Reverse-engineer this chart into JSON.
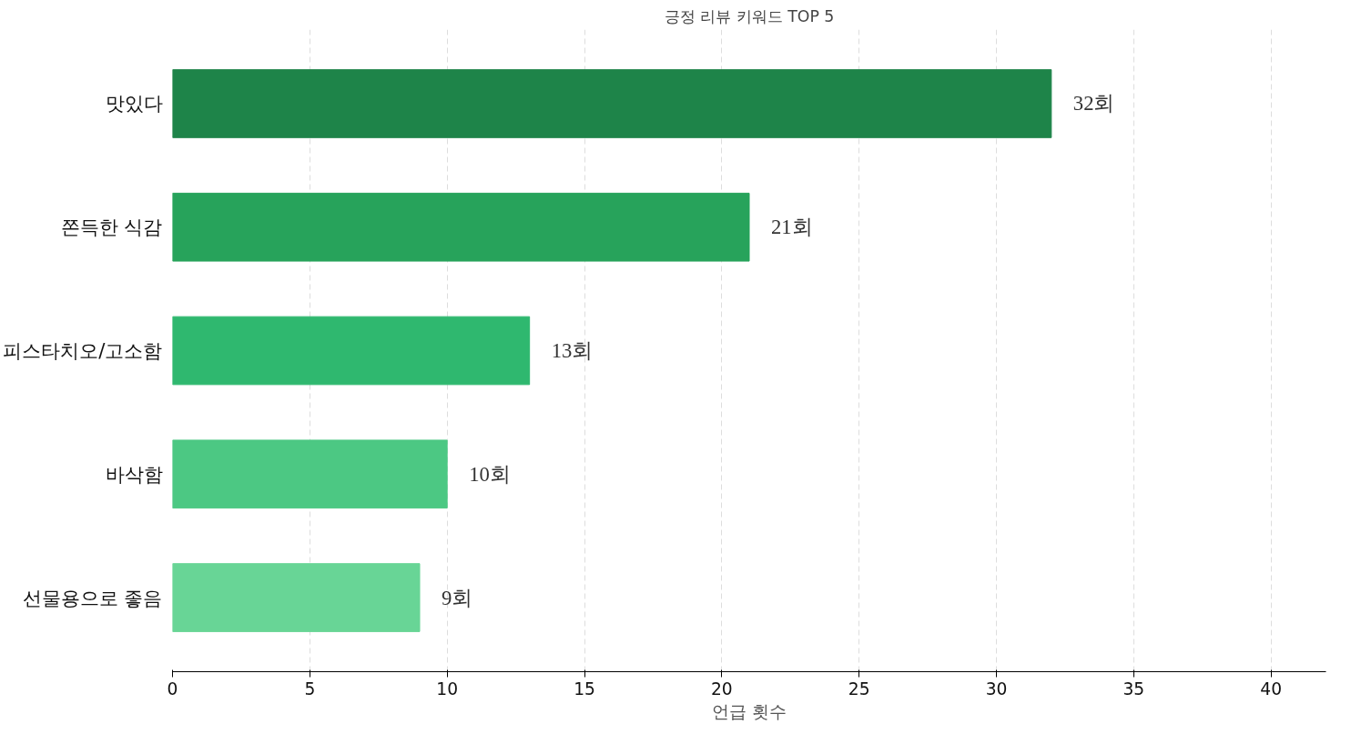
{
  "chart_data": {
    "type": "bar",
    "orientation": "horizontal",
    "title": "긍정 리뷰 키워드 TOP 5",
    "xlabel": "언급 횟수",
    "categories": [
      "맛있다",
      "쫀득한 식감",
      "피스타치오/고소함",
      "바삭함",
      "선물용으로 좋음"
    ],
    "values": [
      32,
      21,
      13,
      10,
      9
    ],
    "colors": [
      "#1e8449",
      "#27a35b",
      "#2fb86f",
      "#4cc883",
      "#68d596"
    ],
    "value_labels": [
      "32회",
      "21회",
      "13회",
      "10회",
      "9회"
    ],
    "xlim": [
      0,
      42
    ],
    "xticks": [
      0,
      5,
      10,
      15,
      20,
      25,
      30,
      35,
      40
    ],
    "grid": "x"
  }
}
